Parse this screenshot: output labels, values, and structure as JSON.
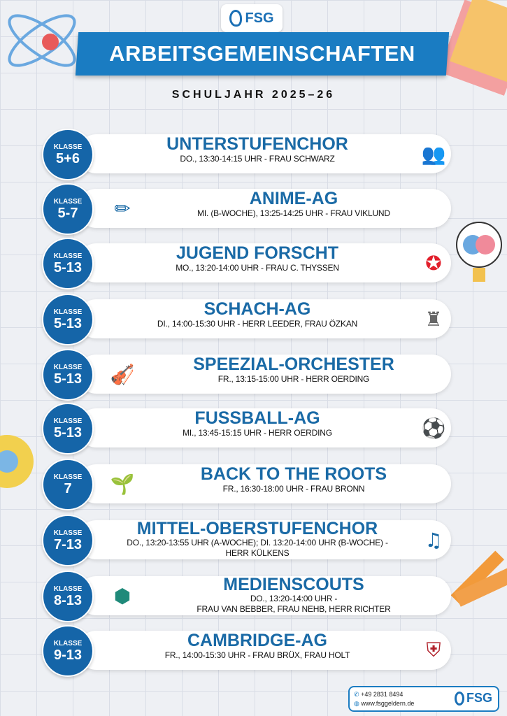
{
  "logo": {
    "text": "FSG"
  },
  "header": {
    "title": "ARBEITSGEMEINSCHAFTEN",
    "subtitle": "SCHULJAHR 2025–26"
  },
  "colors": {
    "primary": "#1a7cc2",
    "badge": "#1565a8",
    "title_text": "#1a6aa6"
  },
  "ags": [
    {
      "klasse": "KLASSE",
      "grade": "5+6",
      "name": "UNTERSTUFENCHOR",
      "info": [
        "DO., 13:30-14:15 UHR - FRAU SCHWARZ"
      ],
      "icon": "choir-icon",
      "icon_side": "right"
    },
    {
      "klasse": "KLASSE",
      "grade": "5-7",
      "name": "ANIME-AG",
      "info": [
        "MI. (B-WOCHE), 13:25-14:25 UHR - FRAU VIKLUND"
      ],
      "icon": "pencil-drawing-icon",
      "icon_side": "left"
    },
    {
      "klasse": "KLASSE",
      "grade": "5-13",
      "name": "JUGEND FORSCHT",
      "info": [
        "MO., 13:20-14:00 UHR - FRAU C. THYSSEN"
      ],
      "icon": "jugend-forscht-star-icon",
      "icon_side": "right"
    },
    {
      "klasse": "KLASSE",
      "grade": "5-13",
      "name": "SCHACH-AG",
      "info": [
        "DI., 14:00-15:30 UHR - HERR LEEDER, FRAU ÖZKAN"
      ],
      "icon": "chess-icon",
      "icon_side": "right"
    },
    {
      "klasse": "KLASSE",
      "grade": "5-13",
      "name": "SPEEZIAL-ORCHESTER",
      "info": [
        "FR., 13:15-15:00 UHR - HERR OERDING"
      ],
      "icon": "orchestra-icon",
      "icon_side": "left"
    },
    {
      "klasse": "KLASSE",
      "grade": "5-13",
      "name": "FUSSBALL-AG",
      "info": [
        "MI., 13:45-15:15 UHR - HERR OERDING"
      ],
      "icon": "soccer-ball-icon",
      "icon_side": "right"
    },
    {
      "klasse": "KLASSE",
      "grade": "7",
      "name": "BACK TO THE ROOTS",
      "info": [
        "FR., 16:30-18:00 UHR - FRAU BRONN"
      ],
      "icon": "garden-bed-icon",
      "icon_side": "left"
    },
    {
      "klasse": "KLASSE",
      "grade": "7-13",
      "name": "MITTEL-OBERSTUFENCHOR",
      "info": [
        "DO., 13:20-13:55 UHR (A-WOCHE); DI. 13:20-14:00 UHR (B-WOCHE) -",
        "HERR KÜLKENS"
      ],
      "icon": "singers-icon",
      "icon_side": "right"
    },
    {
      "klasse": "KLASSE",
      "grade": "8-13",
      "name": "MEDIENSCOUTS",
      "info": [
        "DO., 13:20-14:00 UHR -",
        "FRAU VAN BEBBER, FRAU NEHB, HERR RICHTER"
      ],
      "icon": "medienscouts-nrw-logo-icon",
      "icon_side": "left"
    },
    {
      "klasse": "KLASSE",
      "grade": "9-13",
      "name": "CAMBRIDGE-AG",
      "info": [
        "FR., 14:00-15:30 UHR - FRAU BRÜX, FRAU HOLT"
      ],
      "icon": "cambridge-crest-icon",
      "icon_side": "right"
    }
  ],
  "footer": {
    "phone": "+49 2831 8494",
    "website": "www.fsggeldern.de",
    "logo": "FSG"
  }
}
